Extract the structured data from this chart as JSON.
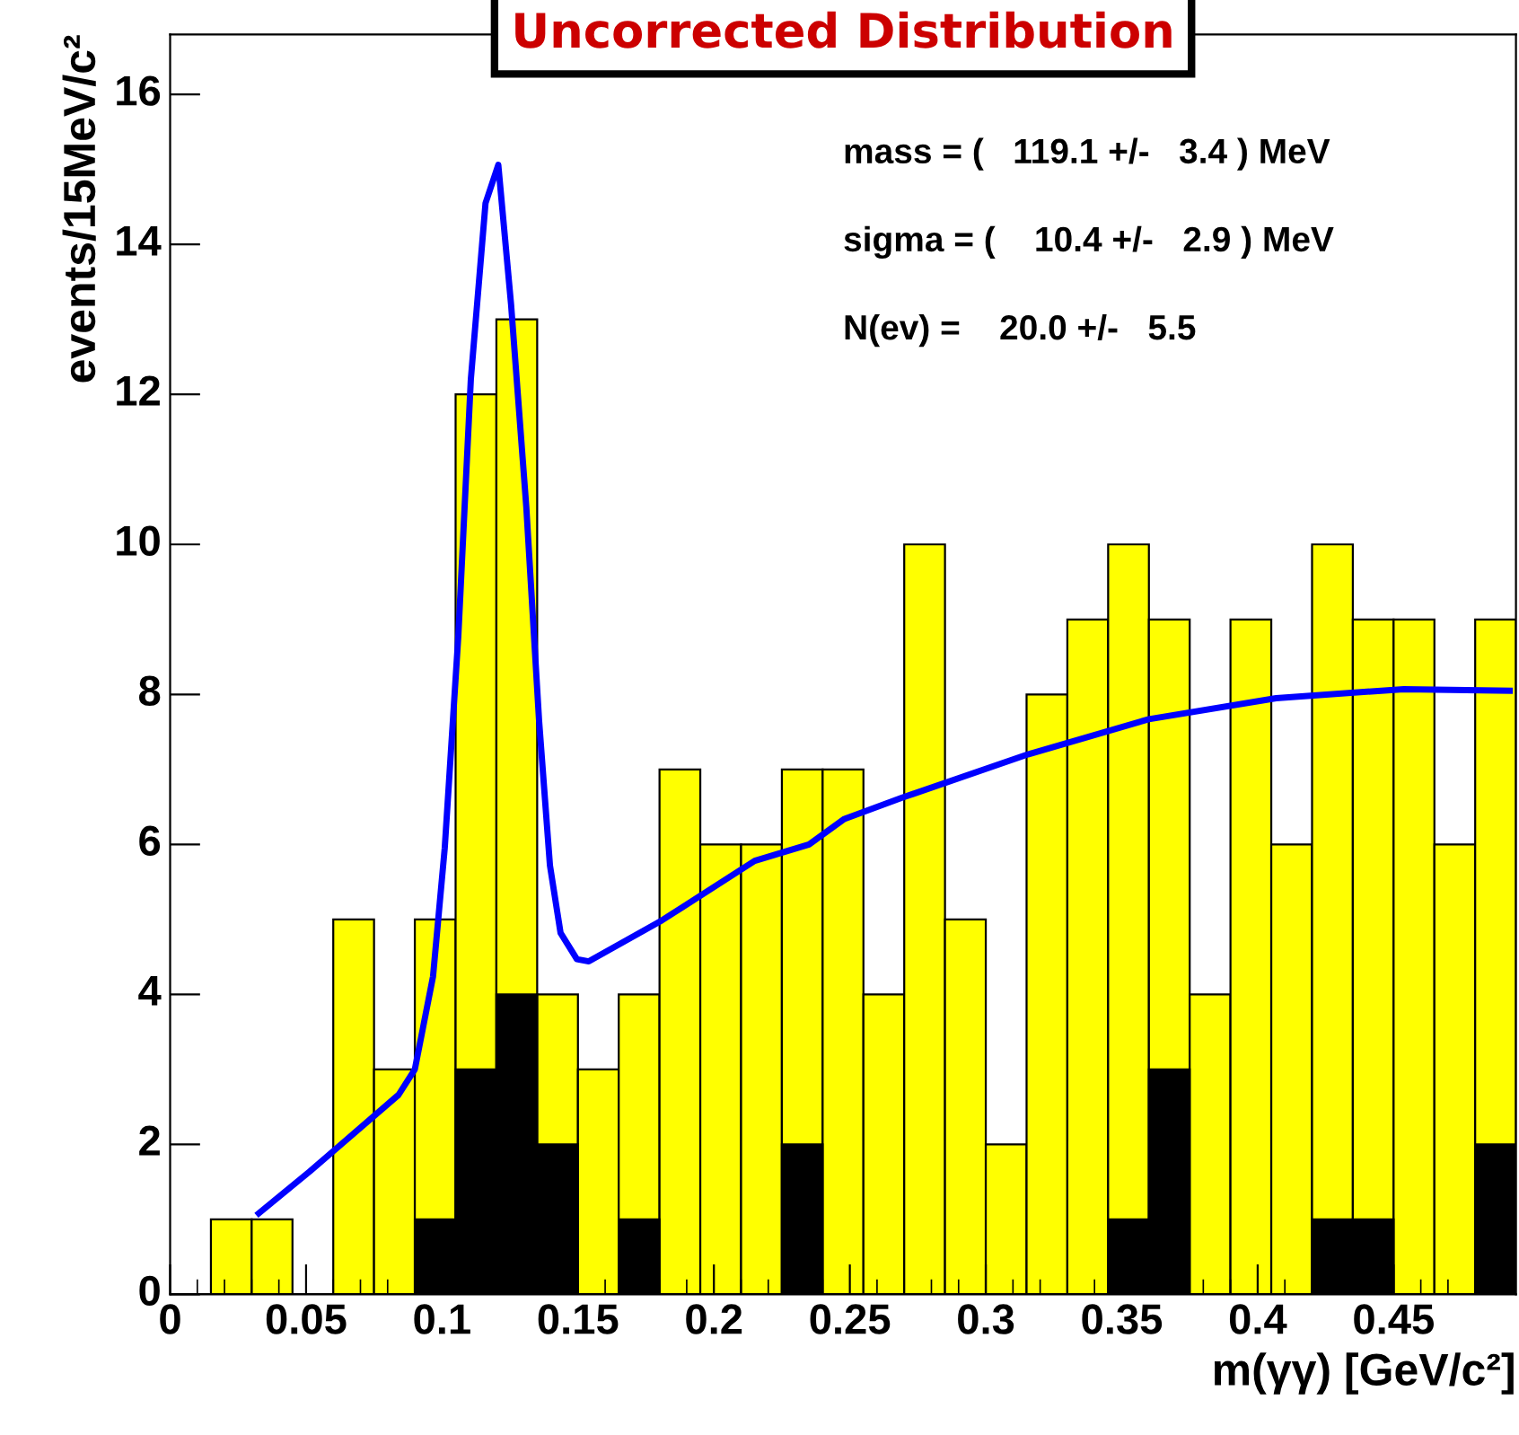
{
  "chart_data": {
    "type": "histogram",
    "title": "Uncorrected Distribution",
    "xlabel": "m(γγ) [GeV/c²]",
    "ylabel": "events/15MeV/c²",
    "bins": [
      0,
      0.015,
      0.03,
      0.045,
      0.06,
      0.075,
      0.09,
      0.105,
      0.12,
      0.135,
      0.15,
      0.165,
      0.18,
      0.195,
      0.21,
      0.225,
      0.24,
      0.255,
      0.27,
      0.285,
      0.3,
      0.315,
      0.33,
      0.345,
      0.36,
      0.375,
      0.39,
      0.405,
      0.42,
      0.435,
      0.45,
      0.465,
      0.48,
      0.495
    ],
    "series": [
      {
        "type": "histogram",
        "color": "#ffff00",
        "values": [
          0,
          1,
          1,
          0,
          5,
          3,
          5,
          12,
          13,
          4,
          3,
          4,
          7,
          6,
          6,
          7,
          7,
          4,
          10,
          5,
          2,
          8,
          9,
          10,
          9,
          4,
          9,
          6,
          10,
          9,
          9,
          6,
          9
        ]
      },
      {
        "type": "histogram",
        "color": "#000000",
        "values": [
          0,
          0,
          0,
          0,
          0,
          0,
          1,
          3,
          4,
          2,
          0,
          1,
          0,
          0,
          0,
          2,
          0,
          0,
          0,
          0,
          0,
          0,
          0,
          1,
          3,
          0,
          0,
          0,
          1,
          1,
          0,
          0,
          2
        ]
      },
      {
        "type": "line",
        "color": "#0000ff",
        "x": [
          0.0326,
          0.0514,
          0.084,
          0.09,
          0.0967,
          0.101,
          0.106,
          0.1106,
          0.116,
          0.1207,
          0.1254,
          0.131,
          0.1357,
          0.1397,
          0.1436,
          0.1496,
          0.154,
          0.181,
          0.215,
          0.235,
          0.248,
          0.269,
          0.3155,
          0.36,
          0.4068,
          0.4537,
          0.4927
        ],
        "values": [
          1.08,
          1.64,
          2.66,
          3.0,
          4.24,
          5.95,
          8.78,
          12.2,
          14.55,
          15.06,
          13.2,
          10.5,
          7.65,
          5.72,
          4.82,
          4.47,
          4.44,
          4.99,
          5.78,
          6.0,
          6.34,
          6.62,
          7.2,
          7.67,
          7.95,
          8.07,
          8.05
        ]
      }
    ],
    "xlim": [
      0,
      0.495
    ],
    "ylim": [
      0,
      16.8
    ],
    "xticks": [
      0,
      0.05,
      0.1,
      0.15,
      0.2,
      0.25,
      0.3,
      0.35,
      0.4,
      0.45
    ],
    "yticks": [
      0,
      2,
      4,
      6,
      8,
      10,
      12,
      14,
      16
    ],
    "annotations": [
      "mass = (   119.1 +/-   3.4 ) MeV",
      "sigma = (    10.4 +/-   2.9 ) MeV",
      "N(ev) =    20.0 +/-   5.5"
    ],
    "grid": false,
    "legend": false
  }
}
